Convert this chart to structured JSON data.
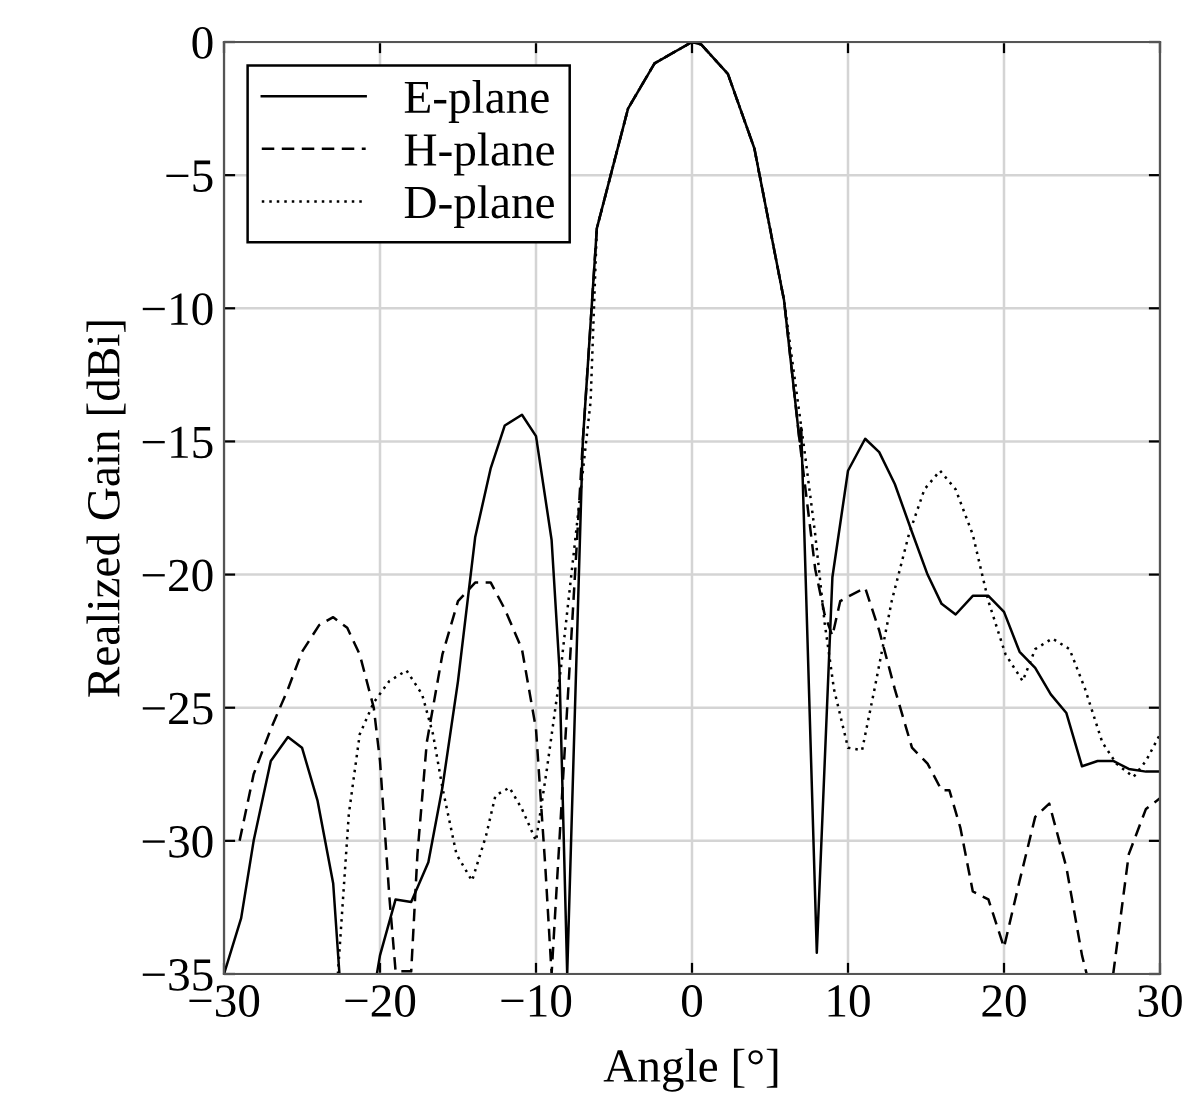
{
  "chart_data": {
    "type": "line",
    "xlabel": "Angle [°]",
    "ylabel": "Realized Gain [dBi]",
    "xlim": [
      -30,
      30
    ],
    "ylim": [
      -35,
      0
    ],
    "xticks": [
      {
        "value": -30,
        "label": "−30"
      },
      {
        "value": -20,
        "label": "−20"
      },
      {
        "value": -10,
        "label": "−10"
      },
      0,
      10,
      20,
      30
    ],
    "yticks": [
      {
        "value": -35,
        "label": "−35"
      },
      {
        "value": -30,
        "label": "−30"
      },
      {
        "value": -25,
        "label": "−25"
      },
      {
        "value": -20,
        "label": "−20"
      },
      {
        "value": -15,
        "label": "−15"
      },
      {
        "value": -10,
        "label": "−10"
      },
      {
        "value": -5,
        "label": "−5"
      },
      0
    ],
    "grid": true,
    "legend": "top left",
    "marker": "none",
    "series": [
      {
        "name": "E-plane",
        "color": "#000000",
        "line_style": "solid",
        "x": [
          -30,
          -28.9,
          -28.1,
          -27,
          -25.9,
          -25,
          -24,
          -23,
          -22.6,
          -21.5,
          -20.2,
          -20,
          -19,
          -18,
          -16.9,
          -16,
          -15,
          -13.9,
          -12.9,
          -12,
          -10.9,
          -10,
          -9,
          -8.5,
          -8,
          -7,
          -6.1,
          -4.1,
          -2.4,
          0,
          0.6,
          2.3,
          4,
          5.9,
          6.9,
          7,
          8,
          9,
          10,
          11.1,
          12,
          13,
          14.1,
          15.1,
          16,
          16.9,
          18,
          19,
          20,
          21,
          22,
          23,
          24,
          25,
          26,
          27,
          28,
          29.1,
          30
        ],
        "values": [
          -35,
          -32.9,
          -30,
          -27,
          -26.1,
          -26.5,
          -28.5,
          -31.6,
          -35,
          null,
          -35,
          -34.3,
          -32.2,
          -32.3,
          -30.8,
          -28,
          -24,
          -18.6,
          -16,
          -14.4,
          -14,
          -14.8,
          -18.7,
          -23.5,
          -35,
          -15,
          -7,
          -2.5,
          -0.8,
          0,
          -0.1,
          -1.2,
          -4,
          -9.7,
          -15,
          -14.5,
          -34.2,
          -20.1,
          -16.1,
          -14.9,
          -15.4,
          -16.6,
          -18.4,
          -20,
          -21.1,
          -21.5,
          -20.8,
          -20.8,
          -21.4,
          -22.9,
          -23.5,
          -24.5,
          -25.2,
          -27.2,
          -27,
          -27,
          -27.3,
          -27.4,
          -27.4
        ]
      },
      {
        "name": "H-plane",
        "color": "#000000",
        "line_style": "dashed",
        "x": [
          -29,
          -28.1,
          -27,
          -25.9,
          -25,
          -23.9,
          -23,
          -22.1,
          -21.3,
          -20.4,
          -20,
          -19.4,
          -19,
          -18,
          -17.6,
          -17,
          -16,
          -15,
          -13.9,
          -12.9,
          -12,
          -10.9,
          -10,
          -9.4,
          -9,
          -7,
          -6.1,
          -4.1,
          -2.4,
          0,
          0.6,
          2.3,
          4,
          5.9,
          6.9,
          7.9,
          8.5,
          9,
          9.5,
          10.1,
          11.1,
          12,
          13,
          14.1,
          15.1,
          16,
          16.5,
          17.2,
          18,
          19,
          20,
          21,
          22,
          22.9,
          24,
          25,
          25.3,
          26,
          27,
          28,
          29.1,
          30
        ],
        "values": [
          -30,
          -27.5,
          -25.8,
          -24.3,
          -22.9,
          -21.9,
          -21.6,
          -22,
          -23,
          -25,
          -27,
          -32.1,
          -34.9,
          -34.9,
          -30.5,
          -26.3,
          -23,
          -21,
          -20.3,
          -20.3,
          -21.3,
          -22.8,
          -25.8,
          -31,
          -35,
          -15,
          -7,
          -2.5,
          -0.8,
          0,
          -0.1,
          -1.2,
          -4,
          -9.7,
          -15,
          -19.8,
          -21.5,
          -22.3,
          -21,
          -20.8,
          -20.5,
          -22.1,
          -24.3,
          -26.5,
          -27.1,
          -28.1,
          -28.1,
          -29.5,
          -31.9,
          -32.2,
          -34,
          -31.5,
          -29.1,
          -28.6,
          -31,
          -34.3,
          -35,
          null,
          -35,
          -30.5,
          -28.8,
          -28.4
        ]
      },
      {
        "name": "D-plane",
        "color": "#000000",
        "line_style": "dotted",
        "x": [
          -22.7,
          -22,
          -21.3,
          -20.4,
          -19.4,
          -18.3,
          -17.3,
          -16.6,
          -16,
          -15.1,
          -14.1,
          -13.2,
          -12.6,
          -11.7,
          -10.9,
          -10,
          -9.3,
          -8.4,
          -7.6,
          -6.5,
          -6.1,
          -4.1,
          -2.4,
          0,
          0.6,
          2.3,
          4,
          5.9,
          7.2,
          7.9,
          8.5,
          9.1,
          10,
          10.9,
          11.7,
          12.8,
          13.9,
          14.9,
          15.9,
          16.9,
          18,
          19,
          20.1,
          21.2,
          22,
          23.1,
          24.2,
          25.2,
          26.3,
          27.2,
          28.3,
          29.1,
          30
        ],
        "values": [
          -35,
          -29,
          -26,
          -24.8,
          -24,
          -23.6,
          -24.5,
          -26,
          -28,
          -30.5,
          -31.5,
          -29.8,
          -28.3,
          -28,
          -28.8,
          -30,
          -27.3,
          -23.5,
          -19.3,
          -13.5,
          -7,
          -2.5,
          -0.8,
          0,
          -0.1,
          -1.2,
          -4,
          -9.7,
          -15.3,
          -18.5,
          -21.8,
          -24.3,
          -26.5,
          -26.6,
          -24.3,
          -21,
          -18.5,
          -16.8,
          -16.1,
          -16.8,
          -18.5,
          -21,
          -23,
          -24,
          -22.8,
          -22.4,
          -22.8,
          -24.3,
          -26.3,
          -27.1,
          -27.6,
          -27,
          -26
        ]
      }
    ]
  }
}
